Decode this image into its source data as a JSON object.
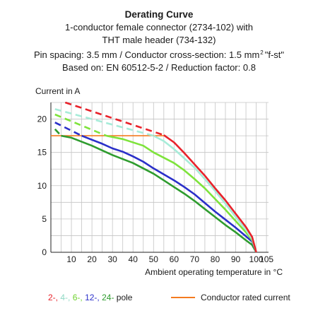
{
  "title_lines": [
    "Derating Curve",
    "1-conductor female connector (2734-102) with",
    "THT male header (734-132)",
    "Pin spacing: 3.5 mm / Conductor cross-section: 1.5 mm",
    "2",
    "\"f-st\"",
    "Based on: EN 60512-5-2 / Reduction factor: 0.8"
  ],
  "chart_data": {
    "type": "line",
    "ylabel": "Current in A",
    "xlabel": "Ambient operating temperature in °C",
    "xlim": [
      0,
      106
    ],
    "ylim": [
      0,
      22.5
    ],
    "x_ticks": [
      10,
      20,
      30,
      40,
      50,
      60,
      70,
      80,
      90,
      100,
      105
    ],
    "y_ticks": [
      0,
      5,
      10,
      15,
      20
    ],
    "grid": true,
    "series": [
      {
        "name": "2-",
        "color": "#e8222b",
        "dashed_points": [
          [
            7,
            22.5
          ],
          [
            55,
            17.6
          ]
        ],
        "points": [
          [
            55,
            17.6
          ],
          [
            60,
            16.5
          ],
          [
            65,
            14.9
          ],
          [
            70,
            13.2
          ],
          [
            75,
            11.5
          ],
          [
            80,
            9.6
          ],
          [
            85,
            7.8
          ],
          [
            90,
            5.8
          ],
          [
            95,
            3.8
          ],
          [
            98,
            2.3
          ],
          [
            100,
            0
          ]
        ]
      },
      {
        "name": "4-",
        "color": "#a7ecd9",
        "dashed_points": [
          [
            2,
            21.5
          ],
          [
            50,
            17.5
          ]
        ],
        "points": [
          [
            50,
            17.5
          ],
          [
            55,
            16.7
          ],
          [
            60,
            15.5
          ],
          [
            65,
            14.1
          ],
          [
            70,
            12.7
          ],
          [
            75,
            11.0
          ],
          [
            80,
            9.2
          ],
          [
            85,
            7.3
          ],
          [
            90,
            5.3
          ],
          [
            95,
            3.4
          ],
          [
            98,
            2.0
          ],
          [
            100,
            0
          ]
        ]
      },
      {
        "name": "6-",
        "color": "#7ee33b",
        "dashed_points": [
          [
            2,
            20.7
          ],
          [
            27,
            17.5
          ]
        ],
        "points": [
          [
            27,
            17.5
          ],
          [
            35,
            17.0
          ],
          [
            45,
            16.0
          ],
          [
            50,
            15.0
          ],
          [
            55,
            14.2
          ],
          [
            60,
            13.4
          ],
          [
            65,
            12.3
          ],
          [
            70,
            11.0
          ],
          [
            75,
            9.6
          ],
          [
            80,
            8.0
          ],
          [
            85,
            6.4
          ],
          [
            90,
            4.7
          ],
          [
            95,
            3.0
          ],
          [
            98,
            1.8
          ],
          [
            100,
            0
          ]
        ]
      },
      {
        "name": "12-",
        "color": "#2a2fc9",
        "dashed_points": [
          [
            2,
            19.5
          ],
          [
            15,
            17.5
          ]
        ],
        "points": [
          [
            15,
            17.5
          ],
          [
            20,
            16.9
          ],
          [
            25,
            16.3
          ],
          [
            30,
            15.6
          ],
          [
            35,
            15.1
          ],
          [
            40,
            14.4
          ],
          [
            45,
            13.6
          ],
          [
            50,
            12.6
          ],
          [
            55,
            11.7
          ],
          [
            60,
            10.8
          ],
          [
            65,
            9.8
          ],
          [
            70,
            8.7
          ],
          [
            75,
            7.4
          ],
          [
            80,
            6.1
          ],
          [
            85,
            4.9
          ],
          [
            90,
            3.7
          ],
          [
            95,
            2.4
          ],
          [
            98,
            1.6
          ],
          [
            100,
            0
          ]
        ]
      },
      {
        "name": "24-",
        "color": "#2e9c2e",
        "dashed_points": [
          [
            2,
            18.5
          ],
          [
            5,
            17.5
          ]
        ],
        "points": [
          [
            5,
            17.5
          ],
          [
            10,
            17.2
          ],
          [
            15,
            16.6
          ],
          [
            20,
            16.0
          ],
          [
            25,
            15.3
          ],
          [
            30,
            14.6
          ],
          [
            35,
            14.0
          ],
          [
            40,
            13.4
          ],
          [
            45,
            12.6
          ],
          [
            50,
            11.8
          ],
          [
            55,
            10.8
          ],
          [
            60,
            9.8
          ],
          [
            65,
            8.8
          ],
          [
            70,
            7.7
          ],
          [
            75,
            6.5
          ],
          [
            80,
            5.3
          ],
          [
            85,
            4.1
          ],
          [
            90,
            3.0
          ],
          [
            95,
            1.8
          ],
          [
            98,
            1.1
          ],
          [
            100,
            0
          ]
        ]
      }
    ],
    "rated_current": {
      "label": "Conductor rated current",
      "value": 17.5,
      "x_range": [
        0,
        56
      ],
      "color": "#f47b20"
    }
  },
  "legend": {
    "series_labels": [
      "2-,",
      "4-,",
      "6-,",
      "12-,",
      "24-"
    ],
    "suffix": "pole"
  }
}
